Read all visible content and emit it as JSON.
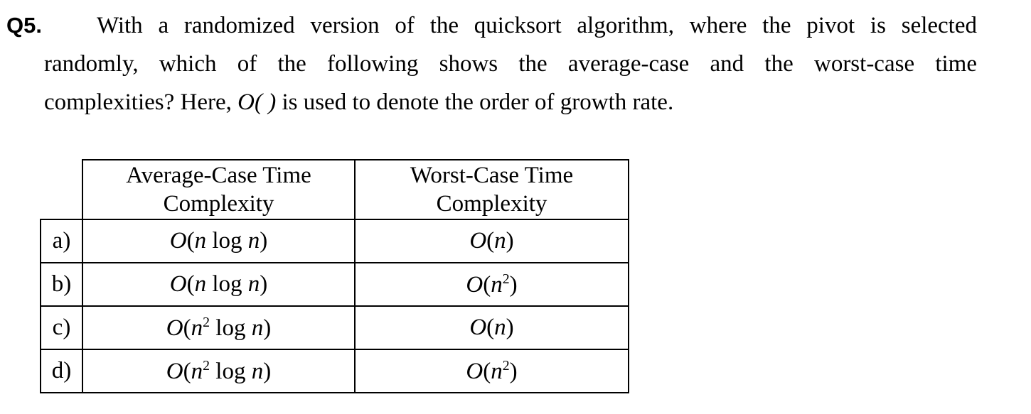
{
  "question": {
    "number": "Q5.",
    "line1": "With a randomized version of the quicksort algorithm, where the pivot is selected",
    "line2": "randomly, which of the following shows the average-case and the worst-case time",
    "line3_pre": "complexities? Here, ",
    "line3_notation": "O( )",
    "line3_post": " is used to denote the order of growth rate."
  },
  "table": {
    "headers": {
      "average_line1": "Average-Case Time",
      "average_line2": "Complexity",
      "worst_line1": "Worst-Case Time",
      "worst_line2": "Complexity"
    },
    "rows": [
      {
        "label": "a)",
        "average": "O(n log n)",
        "worst": "O(n)"
      },
      {
        "label": "b)",
        "average": "O(n log n)",
        "worst": "O(n²)"
      },
      {
        "label": "c)",
        "average": "O(n² log n)",
        "worst": "O(n)"
      },
      {
        "label": "d)",
        "average": "O(n² log n)",
        "worst": "O(n²)"
      }
    ]
  }
}
